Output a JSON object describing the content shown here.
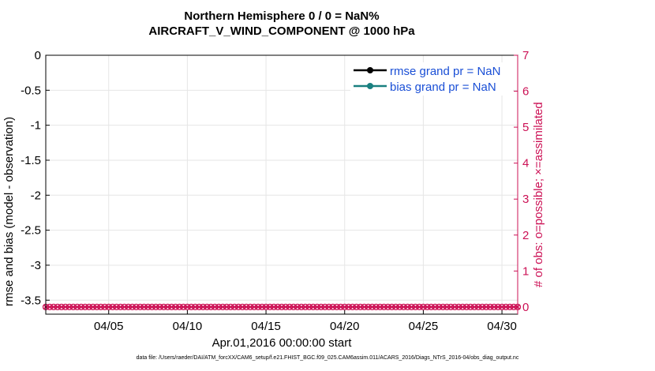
{
  "title_line1": "Northern Hemisphere 0 / 0 = NaN%",
  "title_line2": "AIRCRAFT_V_WIND_COMPONENT @ 1000 hPa",
  "footer": "data file: /Users/raeder/DAI/ATM_forcXX/CAM6_setup/f.e21.FHIST_BGC.f09_025.CAM6assim.011/ACARS_2016/Diags_NTrS_2016-04/obs_diag_output.nc",
  "chart_data": {
    "type": "line",
    "xlabel": "Apr.01,2016 00:00:00 start",
    "ylabel_left": "rmse and bias (model - observation)",
    "ylabel_right": "# of obs: o=possible; ×=assimilated",
    "x_ticks": [
      "04/05",
      "04/10",
      "04/15",
      "04/20",
      "04/25",
      "04/30"
    ],
    "x_tick_days": [
      5,
      10,
      15,
      20,
      25,
      30
    ],
    "xlim_days": [
      1,
      31
    ],
    "y_left_ticks": [
      "0",
      "-0.5",
      "-1",
      "-1.5",
      "-2",
      "-2.5",
      "-3",
      "-3.5"
    ],
    "ylim_left": [
      -3.7,
      0
    ],
    "y_right_ticks": [
      "0",
      "1",
      "2",
      "3",
      "4",
      "5",
      "6",
      "7"
    ],
    "ylim_right": [
      -0.2,
      7
    ],
    "grid": true,
    "legend_position": "top-right",
    "legend": [
      {
        "label": "rmse grand pr = NaN",
        "color": "#000000"
      },
      {
        "label": "bias grand pr = NaN",
        "color": "#1a8080"
      }
    ],
    "obs_series": {
      "x_start_day": 1,
      "x_end_day": 31,
      "interval_days": 0.25,
      "value": 0,
      "color": "#cc1155"
    },
    "colors": {
      "axis": "#000000",
      "right_axis": "#cc1155",
      "grid": "#e6e6e6",
      "legend_text": "#1a4fd6"
    }
  }
}
